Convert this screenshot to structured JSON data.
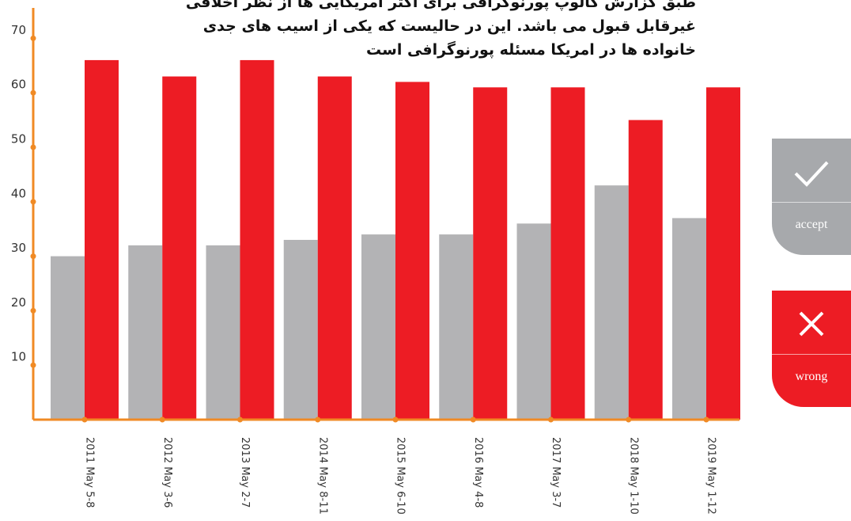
{
  "chart_data": {
    "type": "bar",
    "title": "طبق گزارش گالوپ پورنوگرافی برای اکثر آمریکایی ها از نظر اخلاقی غیرقابل قبول می باشد. این در حالیست که یکی از اسیب های جدی خانواده ها در امریکا مسئله پورنوگرافی است",
    "categories": [
      "2011 May 5-8",
      "2012 May 3-6",
      "2013 May 2-7",
      "2014 May 8-11",
      "2015 May 6-10",
      "2016 May 4-8",
      "2017 May 3-7",
      "2018 May 1-10",
      "2019 May 1-12"
    ],
    "series": [
      {
        "color": "#b3b3b5",
        "values": [
          30,
          32,
          32,
          33,
          34,
          34,
          36,
          43,
          37
        ]
      },
      {
        "color": "#ed1c24",
        "values": [
          66,
          63,
          66,
          63,
          62,
          61,
          61,
          55,
          61
        ]
      }
    ],
    "ylim": [
      0,
      75
    ],
    "yticks": [
      10,
      20,
      30,
      40,
      50,
      60,
      70
    ],
    "axis_color": "#f08a24"
  },
  "buttons": [
    {
      "label": "accept",
      "color": "#a7a9ac"
    },
    {
      "label": "wrong",
      "color": "#ed1c24"
    }
  ]
}
